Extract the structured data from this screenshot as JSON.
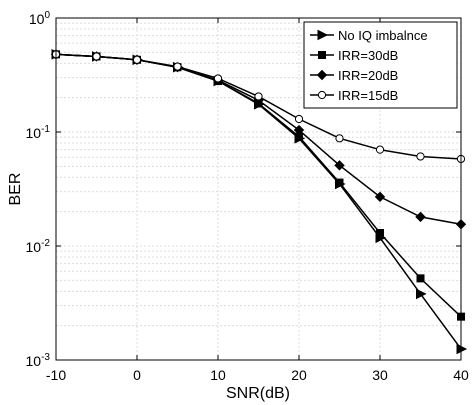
{
  "chart_data": {
    "type": "line",
    "xlabel": "SNR(dB)",
    "ylabel": "BER",
    "xlim": [
      -10,
      40
    ],
    "ylim": [
      0.001,
      1
    ],
    "yscale": "log",
    "grid": true,
    "legend_position": "top-right",
    "x_ticks": [
      "-10",
      "0",
      "10",
      "20",
      "30",
      "40"
    ],
    "y_ticks": [
      {
        "base": "10",
        "exp": "0"
      },
      {
        "base": "10",
        "exp": "-1"
      },
      {
        "base": "10",
        "exp": "-2"
      },
      {
        "base": "10",
        "exp": "-3"
      }
    ],
    "x": [
      -10,
      -5,
      0,
      5,
      10,
      15,
      20,
      25,
      30,
      35,
      40
    ],
    "series": [
      {
        "name": "No IQ imbalnce",
        "marker": "triangle-right",
        "values": [
          0.48,
          0.46,
          0.43,
          0.37,
          0.28,
          0.175,
          0.088,
          0.035,
          0.0118,
          0.0038,
          0.00125
        ]
      },
      {
        "name": "IRR=30dB",
        "marker": "square",
        "values": [
          0.48,
          0.46,
          0.43,
          0.37,
          0.28,
          0.178,
          0.091,
          0.036,
          0.013,
          0.0052,
          0.0024
        ]
      },
      {
        "name": "IRR=20dB",
        "marker": "diamond",
        "values": [
          0.48,
          0.46,
          0.43,
          0.37,
          0.285,
          0.19,
          0.104,
          0.051,
          0.027,
          0.018,
          0.0155
        ]
      },
      {
        "name": "IRR=15dB",
        "marker": "circle",
        "values": [
          0.48,
          0.46,
          0.43,
          0.375,
          0.295,
          0.205,
          0.13,
          0.088,
          0.07,
          0.061,
          0.058
        ]
      }
    ]
  }
}
